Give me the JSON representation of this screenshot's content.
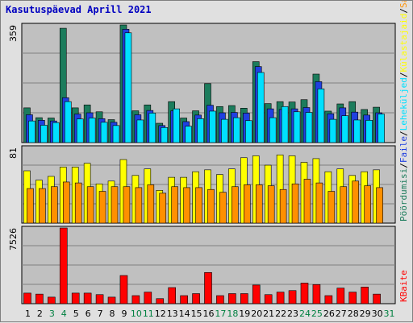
{
  "title": "Kasutuspäevad Aprill 2021",
  "colors": {
    "background": "#e0e0e0",
    "panel": "#c0c0c0",
    "grid": "#808080",
    "visits": "#1c7c5c",
    "pages": "#2040e0",
    "files": "#00e0ff",
    "hits": "#ffff00",
    "sites": "#ff9000",
    "kbytes": "#ff0000",
    "weekday_label": "#000000",
    "weekend_label": "#008040",
    "title": "#0000c0"
  },
  "chart_data": [
    {
      "type": "bar",
      "panel": "top",
      "ymax_label": "359",
      "ylim": [
        0,
        359
      ],
      "categories": [
        "1",
        "2",
        "3",
        "4",
        "5",
        "6",
        "7",
        "8",
        "9",
        "10",
        "11",
        "12",
        "13",
        "14",
        "15",
        "16",
        "17",
        "18",
        "19",
        "20",
        "21",
        "22",
        "23",
        "24",
        "25",
        "26",
        "27",
        "28",
        "29",
        "30",
        "31"
      ],
      "weekend_days": [
        "3",
        "4",
        "10",
        "11",
        "17",
        "18",
        "24",
        "25",
        "31"
      ],
      "series": [
        {
          "name": "Pöördumisi",
          "color": "#1c7c5c",
          "values": [
            106,
            76,
            75,
            349,
            106,
            115,
            94,
            70,
            359,
            97,
            115,
            59,
            125,
            75,
            97,
            180,
            110,
            113,
            105,
            247,
            119,
            125,
            124,
            131,
            209,
            96,
            118,
            125,
            101,
            108,
            0
          ]
        },
        {
          "name": "Faile",
          "color": "#2040e0",
          "values": [
            85,
            68,
            66,
            137,
            87,
            91,
            73,
            62,
            346,
            85,
            98,
            52,
            97,
            64,
            84,
            114,
            91,
            92,
            90,
            232,
            103,
            101,
            103,
            107,
            186,
            88,
            106,
            93,
            84,
            91,
            0
          ]
        },
        {
          "name": "Leheküljed",
          "color": "#00e0ff",
          "values": [
            66,
            53,
            61,
            125,
            72,
            75,
            62,
            52,
            335,
            69,
            90,
            46,
            103,
            50,
            73,
            96,
            71,
            76,
            67,
            214,
            76,
            110,
            94,
            92,
            164,
            71,
            82,
            69,
            68,
            87,
            0
          ]
        }
      ]
    },
    {
      "type": "bar",
      "panel": "middle",
      "ymax_label": "81",
      "ylim": [
        0,
        81
      ],
      "categories": [
        "1",
        "2",
        "3",
        "4",
        "5",
        "6",
        "7",
        "8",
        "9",
        "10",
        "11",
        "12",
        "13",
        "14",
        "15",
        "16",
        "17",
        "18",
        "19",
        "20",
        "21",
        "22",
        "23",
        "24",
        "25",
        "26",
        "27",
        "28",
        "29",
        "30",
        "31"
      ],
      "series": [
        {
          "name": "Külastajaid",
          "color": "#ffff00",
          "values": [
            56,
            46,
            50,
            60,
            60,
            64,
            42,
            45,
            68,
            51,
            58,
            35,
            49,
            49,
            55,
            57,
            52,
            58,
            70,
            72,
            62,
            73,
            72,
            65,
            69,
            55,
            58,
            51,
            55,
            57,
            0
          ]
        },
        {
          "name": "Saite",
          "color": "#ff9000",
          "values": [
            37,
            37,
            39,
            44,
            43,
            39,
            34,
            39,
            39,
            38,
            41,
            32,
            39,
            38,
            38,
            36,
            33,
            39,
            41,
            41,
            40,
            36,
            42,
            47,
            43,
            34,
            39,
            45,
            40,
            38,
            0
          ]
        }
      ]
    },
    {
      "type": "bar",
      "panel": "bottom",
      "ymax_label": "7526",
      "ylim": [
        0,
        7526
      ],
      "categories": [
        "1",
        "2",
        "3",
        "4",
        "5",
        "6",
        "7",
        "8",
        "9",
        "10",
        "11",
        "12",
        "13",
        "14",
        "15",
        "16",
        "17",
        "18",
        "19",
        "20",
        "21",
        "22",
        "23",
        "24",
        "25",
        "26",
        "27",
        "28",
        "29",
        "30",
        "31"
      ],
      "series": [
        {
          "name": "KBaite",
          "color": "#ff0000",
          "values": [
            1050,
            950,
            650,
            7526,
            1050,
            1050,
            900,
            650,
            2800,
            800,
            1150,
            500,
            1600,
            800,
            1000,
            3100,
            800,
            1000,
            1000,
            1850,
            900,
            1150,
            1300,
            2050,
            1900,
            800,
            1550,
            1150,
            1650,
            950,
            0
          ]
        }
      ]
    }
  ],
  "legend_right": {
    "top": [
      {
        "text": "Pöördumisi",
        "color": "#1c7c5c"
      },
      {
        "text": "/",
        "color": "#000000"
      },
      {
        "text": "Faile",
        "color": "#2040e0"
      },
      {
        "text": "/",
        "color": "#000000"
      },
      {
        "text": "Leheküljed",
        "color": "#00e0ff"
      },
      {
        "text": "/",
        "color": "#000000"
      },
      {
        "text": "Külastajaid",
        "color": "#ffff00"
      },
      {
        "text": "/",
        "color": "#000000"
      },
      {
        "text": "Saite",
        "color": "#ff9000"
      }
    ],
    "bottom": [
      {
        "text": "KBaite",
        "color": "#ff0000"
      }
    ]
  }
}
